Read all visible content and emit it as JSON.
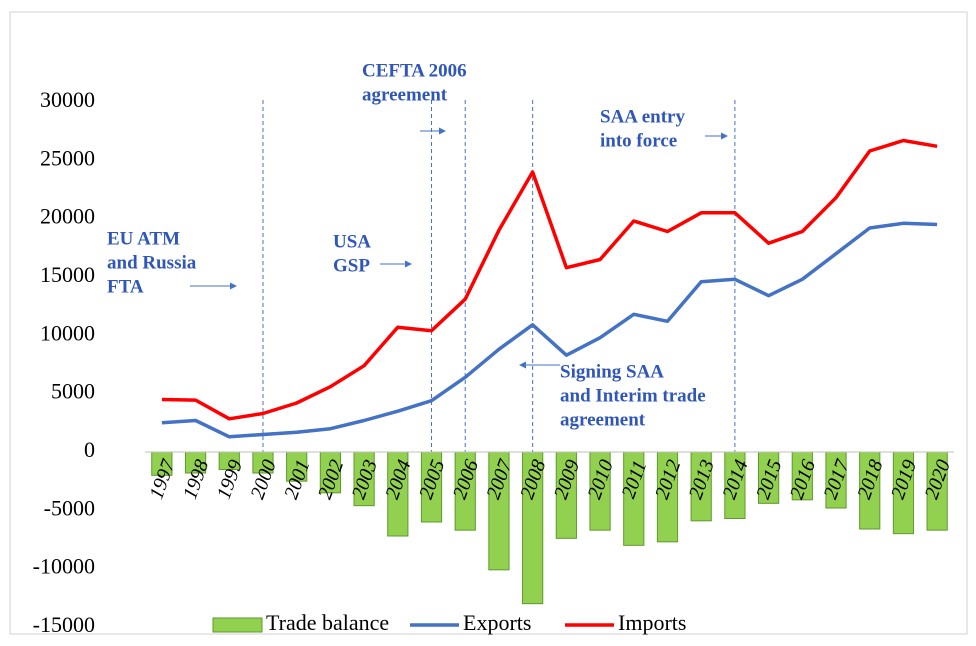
{
  "chart_data": {
    "type": "bar-line",
    "categories": [
      "1997",
      "1998",
      "1999",
      "2000",
      "2001",
      "2002",
      "2003",
      "2004",
      "2005",
      "2006",
      "2007",
      "2008",
      "2009",
      "2010",
      "2011",
      "2012",
      "2013",
      "2014",
      "2015",
      "2016",
      "2017",
      "2018",
      "2019",
      "2020"
    ],
    "series": [
      {
        "name": "Trade balance",
        "type": "bar",
        "color": "#92d050",
        "values": [
          -2000,
          -1800,
          -1500,
          -1800,
          -2500,
          -3500,
          -4600,
          -7200,
          -6000,
          -6700,
          -10100,
          -13000,
          -7400,
          -6700,
          -8000,
          -7700,
          -5900,
          -5700,
          -4400,
          -4100,
          -4800,
          -6600,
          -7000,
          -6700
        ]
      },
      {
        "name": "Exports",
        "type": "line",
        "color": "#4472c4",
        "values": [
          2500,
          2700,
          1300,
          1500,
          1700,
          2000,
          2700,
          3500,
          4400,
          6400,
          8800,
          10900,
          8300,
          9800,
          11800,
          11200,
          14600,
          14800,
          13400,
          14800,
          17000,
          19200,
          19600,
          19500
        ]
      },
      {
        "name": "Imports",
        "type": "line",
        "color": "#ff0000",
        "values": [
          4500,
          4450,
          2850,
          3300,
          4200,
          5600,
          7400,
          10700,
          10400,
          13100,
          19000,
          24000,
          15800,
          16500,
          19800,
          18900,
          20500,
          20500,
          17900,
          18900,
          21800,
          25800,
          26700,
          26200
        ]
      }
    ],
    "ylim": [
      -15000,
      30000
    ],
    "yticks": [
      -15000,
      -10000,
      -5000,
      0,
      5000,
      10000,
      15000,
      20000,
      25000,
      30000
    ],
    "annotations": [
      [
        "EU ATM",
        "and Russia",
        "FTA"
      ],
      [
        "USA",
        "GSP"
      ],
      [
        "CEFTA 2006",
        "agreement"
      ],
      [
        "Signing SAA",
        "and Interim trade",
        "agreement"
      ],
      [
        "SAA entry",
        "into force"
      ]
    ]
  }
}
